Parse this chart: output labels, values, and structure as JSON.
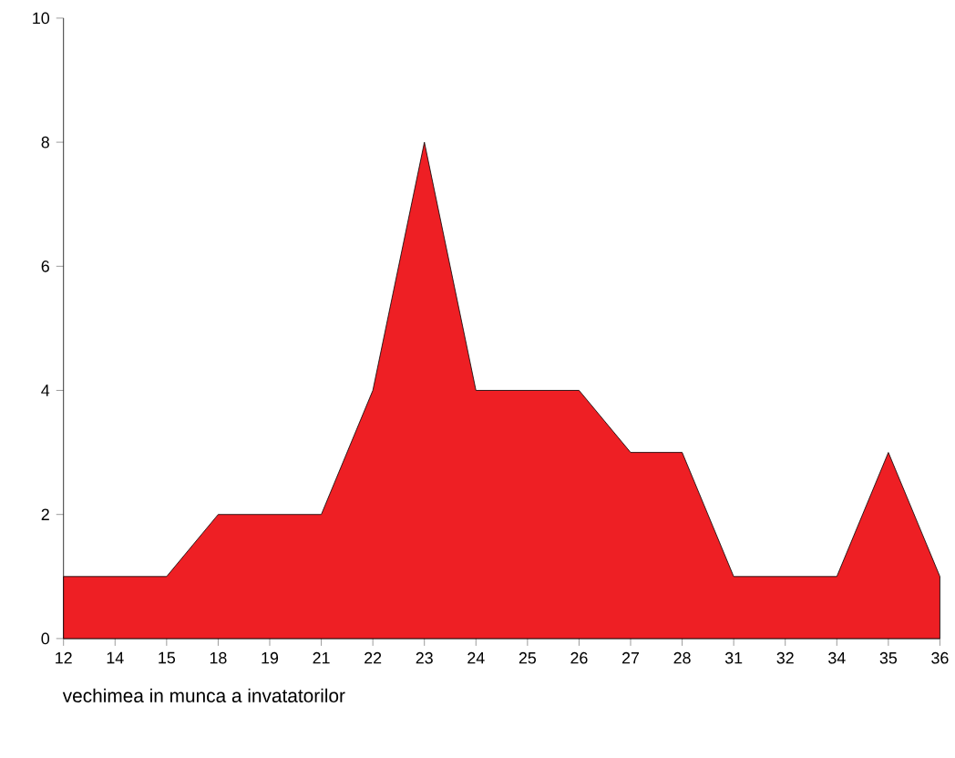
{
  "chart_data": {
    "type": "area",
    "xlabel": "vechimea in munca a invatatorilor",
    "categories": [
      "12",
      "14",
      "15",
      "18",
      "19",
      "21",
      "22",
      "23",
      "24",
      "25",
      "26",
      "27",
      "28",
      "31",
      "32",
      "34",
      "35",
      "36"
    ],
    "values": [
      1,
      1,
      1,
      2,
      2,
      2,
      4,
      8,
      4,
      4,
      4,
      3,
      3,
      1,
      1,
      1,
      3,
      1
    ],
    "color": "#ee1f24",
    "ylim": [
      0,
      10
    ],
    "yticks": [
      0,
      2,
      4,
      6,
      8,
      10
    ],
    "grid": false
  }
}
